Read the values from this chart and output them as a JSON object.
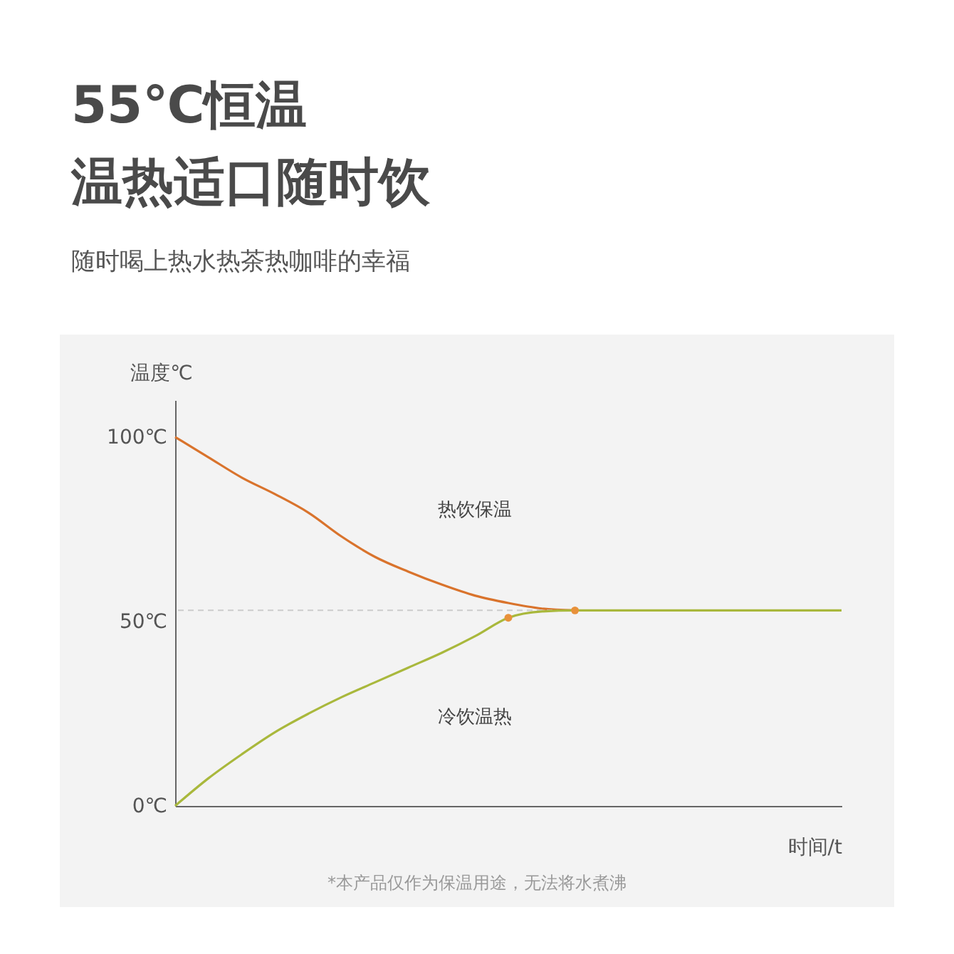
{
  "chart_data": {
    "type": "line",
    "title": "55℃恒温",
    "subtitle": "温热适口随时饮",
    "xlabel": "时间/t",
    "ylabel": "温度℃",
    "categories": [
      null,
      null,
      null,
      null,
      null,
      null,
      null,
      null,
      null,
      null,
      null,
      null,
      null,
      null,
      null,
      null,
      null,
      null,
      null,
      null,
      null
    ],
    "series": [
      {
        "color": "#d9732c",
        "values": [
          100,
          94.5,
          89,
          84.5,
          79.5,
          73,
          67.5,
          63.5,
          60,
          57,
          55,
          53.5,
          53,
          null,
          null,
          null,
          null,
          null,
          null,
          null,
          null
        ]
      },
      {
        "color": "#a9b83c",
        "values": [
          0,
          7.5,
          14,
          20,
          25,
          29.5,
          33.5,
          37.5,
          41.5,
          46,
          51,
          52.7,
          53,
          53,
          53,
          53,
          53,
          53,
          53,
          53,
          53
        ]
      },
      {
        "type": "scatter",
        "color": "#e8913a",
        "values": [
          null,
          null,
          null,
          null,
          null,
          null,
          null,
          null,
          null,
          null,
          51,
          null,
          53,
          null,
          null,
          null,
          null,
          null,
          null,
          null,
          null
        ]
      }
    ],
    "ylim": [
      0,
      110
    ],
    "yticks": [
      {
        "value": 0,
        "label": "0℃"
      },
      {
        "value": 50,
        "label": "50℃"
      },
      {
        "value": 100,
        "label": "100℃"
      }
    ],
    "ref_lines": [
      {
        "axis": "y",
        "value": 53,
        "color": "#cccccc",
        "line_style": "dashed"
      }
    ],
    "annotations": [
      "随时喝上热水热茶热咖啡的幸福",
      "热饮保温",
      "冷饮温热",
      "*本产品仅作为保温用途，无法将水煮沸"
    ],
    "grid": false,
    "line_style": "solid"
  }
}
